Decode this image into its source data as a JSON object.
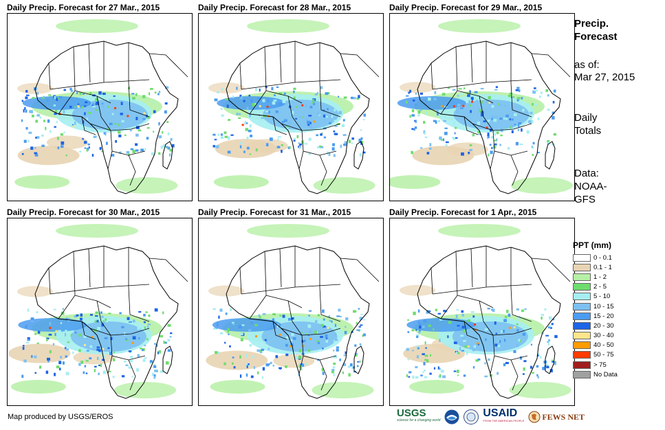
{
  "panels": [
    {
      "title": "Daily Precip. Forecast for 27 Mar., 2015"
    },
    {
      "title": "Daily Precip. Forecast for 28 Mar., 2015"
    },
    {
      "title": "Daily Precip. Forecast for 29 Mar., 2015"
    },
    {
      "title": "Daily Precip. Forecast for 30 Mar., 2015"
    },
    {
      "title": "Daily Precip. Forecast for 31 Mar., 2015"
    },
    {
      "title": "Daily Precip. Forecast for 1 Apr., 2015"
    }
  ],
  "sidebar": {
    "title": "Precip. Forecast",
    "asof_label": "as of:",
    "asof_date": "Mar 27, 2015",
    "totals": "Daily Totals",
    "data_label": "Data:",
    "data_source": "NOAA-GFS"
  },
  "legend": {
    "title": "PPT (mm)",
    "items": [
      {
        "label": "0 - 0.1",
        "color": "#ffffff"
      },
      {
        "label": "0.1 - 1",
        "color": "#e8d4b3"
      },
      {
        "label": "1 - 2",
        "color": "#b6f0a6"
      },
      {
        "label": "2 - 5",
        "color": "#6edc6e"
      },
      {
        "label": "5 - 10",
        "color": "#a6eef2"
      },
      {
        "label": "10 - 15",
        "color": "#7cc0f2"
      },
      {
        "label": "15 - 20",
        "color": "#4b9cf0"
      },
      {
        "label": "20 - 30",
        "color": "#1e64e6"
      },
      {
        "label": "30 - 40",
        "color": "#ffe68c"
      },
      {
        "label": "40 - 50",
        "color": "#ff9c00"
      },
      {
        "label": "50 - 75",
        "color": "#ff3c00"
      },
      {
        "label": "> 75",
        "color": "#a01e1e"
      },
      {
        "label": "No Data",
        "color": "#a0a0a0"
      }
    ]
  },
  "footer": {
    "credit": "Map produced by USGS/EROS"
  },
  "logos": {
    "usgs": "USGS",
    "usgs_tagline": "science for a changing world",
    "noaa": "NOAA",
    "usaid": "USAID",
    "usaid_tagline": "FROM THE AMERICAN PEOPLE",
    "fewsnet": "FEWS NET"
  }
}
